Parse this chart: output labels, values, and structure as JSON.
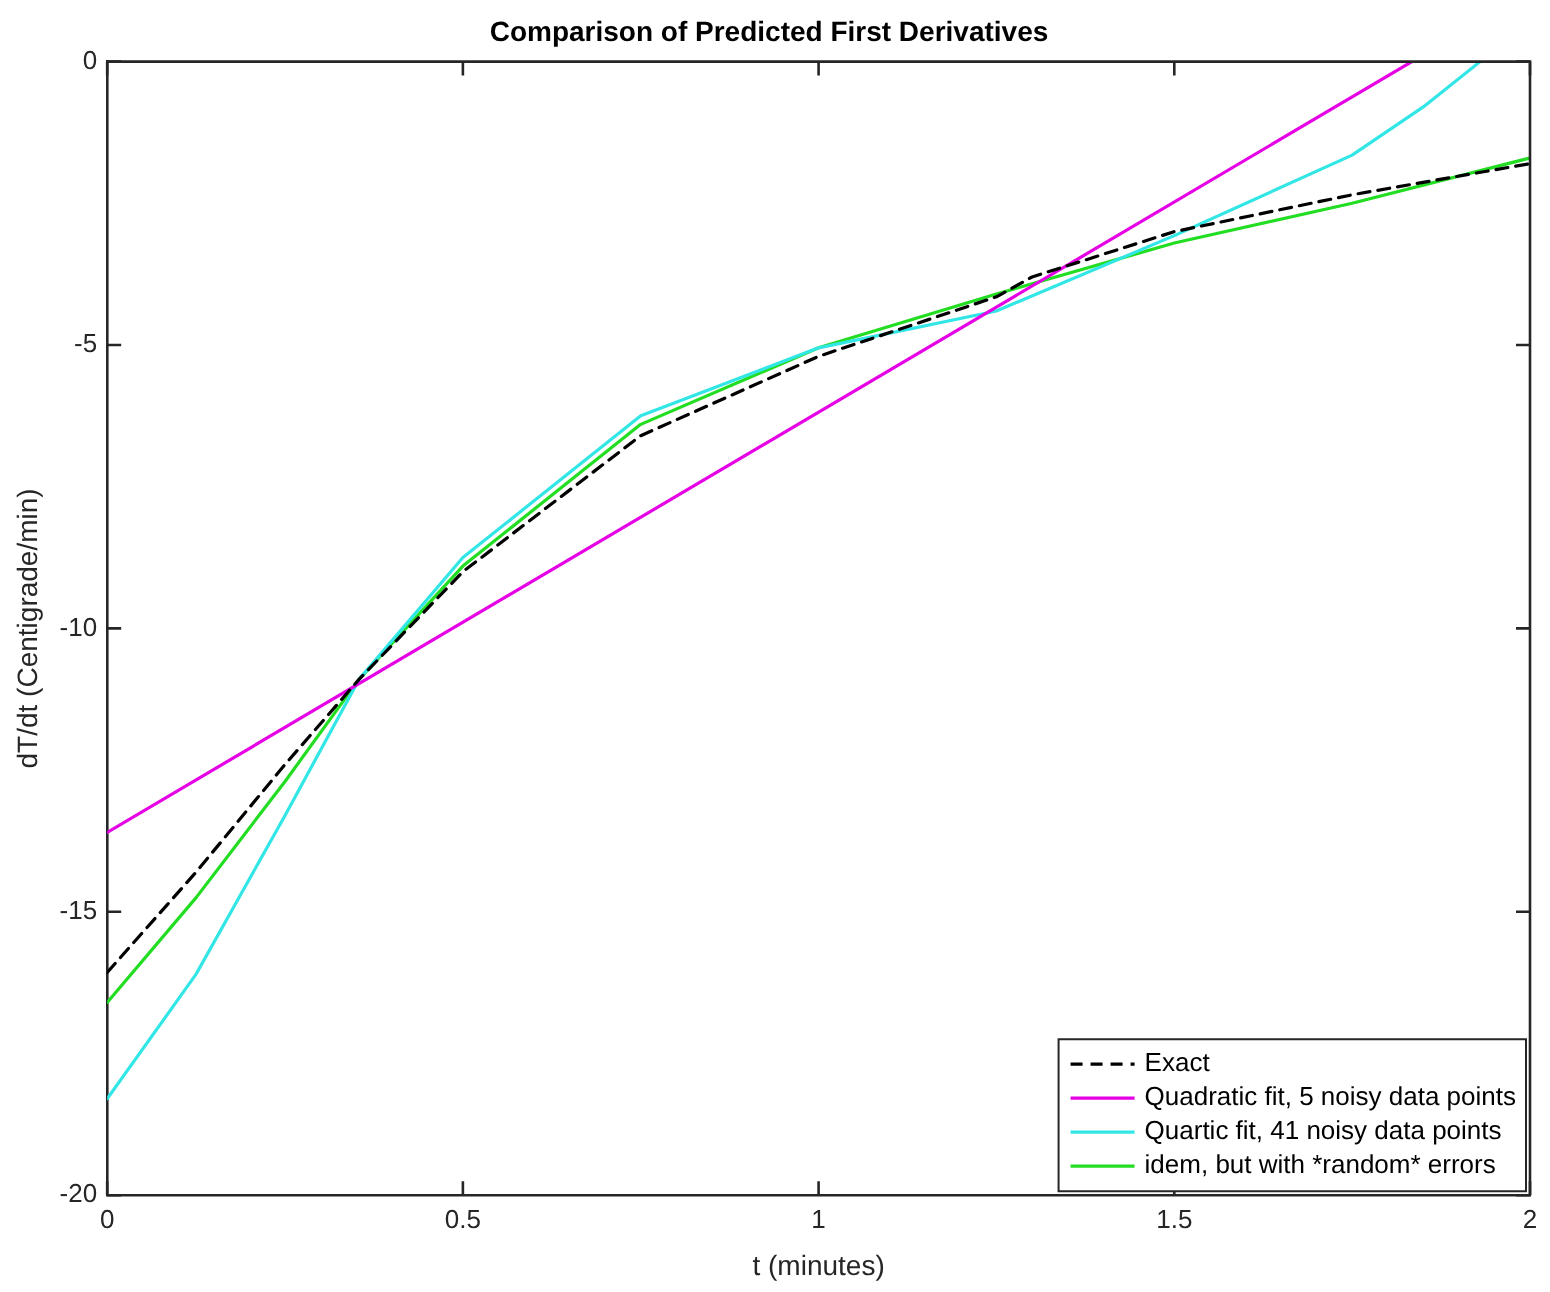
{
  "chart_data": {
    "type": "line",
    "title": "Comparison of Predicted First Derivatives",
    "xlabel": "t (minutes)",
    "ylabel": "dT/dt (Centigrade/min)",
    "xlim": [
      0,
      2
    ],
    "xticks": [
      0,
      0.5,
      1,
      1.5,
      2
    ],
    "ylim": [
      -20,
      0
    ],
    "yticks": [
      -20,
      -15,
      -10,
      -5,
      0
    ],
    "grid": false,
    "legend": "bottom right",
    "marker": "none",
    "series": [
      {
        "name": "Exact",
        "color": "#000000",
        "line_style": "dashed",
        "x": [
          0,
          0.125,
          0.25,
          0.354,
          0.5,
          0.75,
          1,
          1.25,
          1.3,
          1.5,
          1.75,
          2
        ],
        "values": [
          -16.07,
          -14.3,
          -12.4,
          -10.9,
          -9.0,
          -6.6,
          -5.2,
          -4.15,
          -3.8,
          -3.0,
          -2.35,
          -1.8
        ]
      },
      {
        "name": "Quadratic fit, 5 noisy data points",
        "color": "#e600e6",
        "line_style": "solid",
        "x": [
          0,
          1.834
        ],
        "values": [
          -13.6,
          0
        ]
      },
      {
        "name": "Quartic fit, 41 noisy data points",
        "color": "#33e6e6",
        "line_style": "solid",
        "x": [
          0,
          0.125,
          0.25,
          0.354,
          0.5,
          0.75,
          1,
          1.25,
          1.5,
          1.75,
          1.85,
          1.93
        ],
        "values": [
          -18.3,
          -16.1,
          -13.3,
          -10.9,
          -8.75,
          -6.25,
          -5.05,
          -4.4,
          -3.07,
          -1.65,
          -0.8,
          0
        ]
      },
      {
        "name": "idem, but with *random* errors",
        "color": "#22dd22",
        "line_style": "solid",
        "x": [
          0,
          0.125,
          0.25,
          0.354,
          0.5,
          0.75,
          1,
          1.25,
          1.5,
          1.75,
          2
        ],
        "values": [
          -16.6,
          -14.75,
          -12.7,
          -10.9,
          -8.9,
          -6.4,
          -5.05,
          -4.1,
          -3.2,
          -2.5,
          -1.7
        ]
      }
    ]
  }
}
